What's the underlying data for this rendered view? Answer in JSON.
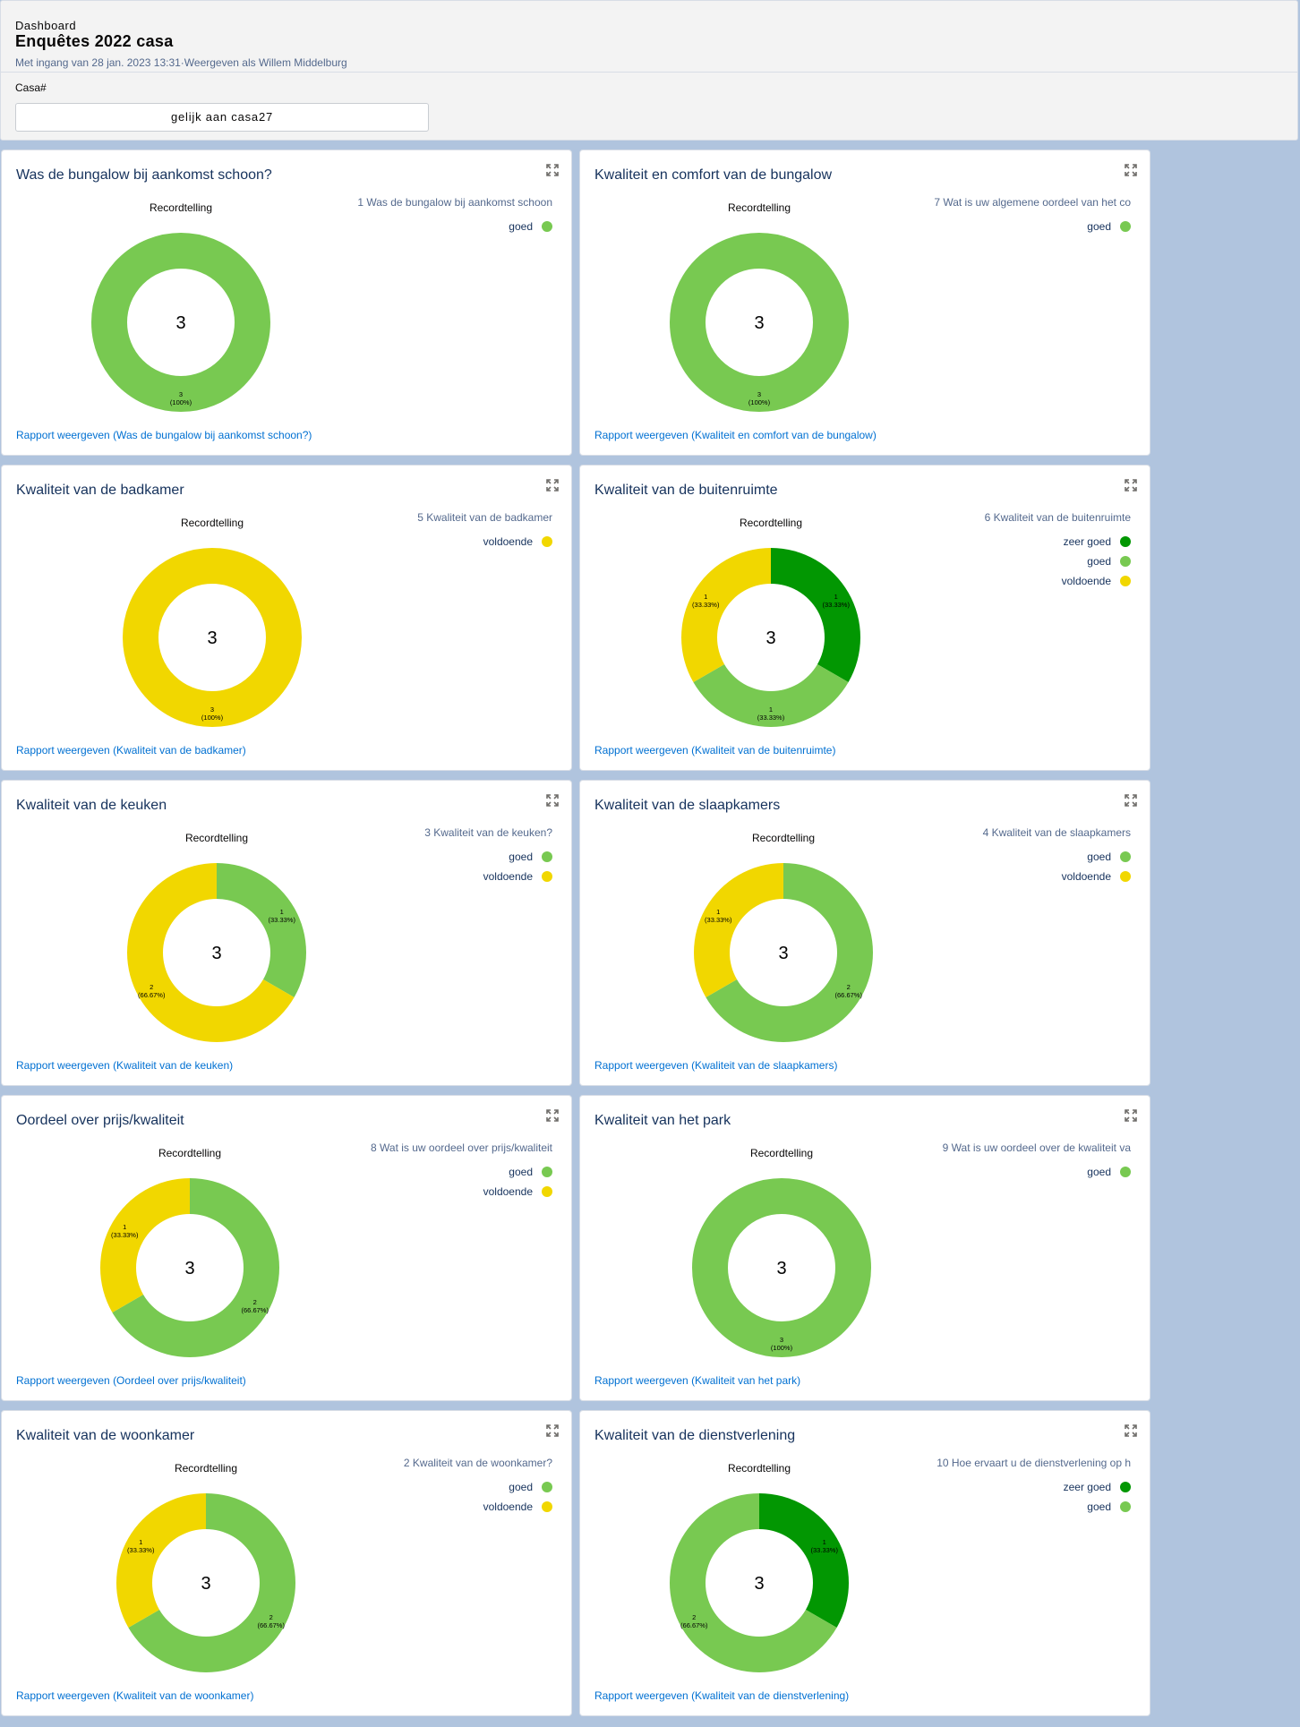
{
  "header": {
    "breadcrumb": "Dashboard",
    "title": "Enquêtes 2022 casa",
    "subtitle": "Met ingang van 28 jan. 2023 13:31·Weergeven als Willem Middelburg",
    "filter_label": "Casa#",
    "filter_value": "gelijk aan casa27"
  },
  "colors": {
    "zeer goed": "#029702",
    "goed": "#78c951",
    "voldoende": "#f1d700"
  },
  "cards": [
    {
      "title": "Was de bungalow bij aankomst schoon?",
      "legend_title": "1 Was de bungalow bij aankomst schoon",
      "link": "Rapport weergeven (Was de bungalow bij aankomst schoon?)",
      "chart_data": {
        "type": "pie",
        "title": "Recordtelling",
        "total": "3",
        "slices": [
          {
            "category": "goed",
            "value": 3,
            "label": "3",
            "percent": "(100%)"
          }
        ]
      }
    },
    {
      "title": "Kwaliteit en comfort van de bungalow",
      "legend_title": "7 Wat is uw  algemene oordeel van het co",
      "link": "Rapport weergeven (Kwaliteit en comfort van de bungalow)",
      "chart_data": {
        "type": "pie",
        "title": "Recordtelling",
        "total": "3",
        "slices": [
          {
            "category": "goed",
            "value": 3,
            "label": "3",
            "percent": "(100%)"
          }
        ]
      }
    },
    {
      "title": "Kwaliteit van de badkamer",
      "legend_title": "5 Kwaliteit van de badkamer",
      "link": "Rapport weergeven (Kwaliteit van de badkamer)",
      "chart_data": {
        "type": "pie",
        "title": "Recordtelling",
        "total": "3",
        "slices": [
          {
            "category": "voldoende",
            "value": 3,
            "label": "3",
            "percent": "(100%)"
          }
        ]
      }
    },
    {
      "title": "Kwaliteit van de buitenruimte",
      "legend_title": "6 Kwaliteit van de buitenruimte",
      "link": "Rapport weergeven (Kwaliteit van de buitenruimte)",
      "chart_data": {
        "type": "pie",
        "title": "Recordtelling",
        "total": "3",
        "slices": [
          {
            "category": "zeer goed",
            "value": 1,
            "label": "1",
            "percent": "(33.33%)"
          },
          {
            "category": "goed",
            "value": 1,
            "label": "1",
            "percent": "(33.33%)"
          },
          {
            "category": "voldoende",
            "value": 1,
            "label": "1",
            "percent": "(33.33%)"
          }
        ]
      }
    },
    {
      "title": "Kwaliteit van de keuken",
      "legend_title": "3 Kwaliteit van de keuken?",
      "link": "Rapport weergeven (Kwaliteit van de keuken)",
      "chart_data": {
        "type": "pie",
        "title": "Recordtelling",
        "total": "3",
        "slices": [
          {
            "category": "goed",
            "value": 1,
            "label": "1",
            "percent": "(33.33%)"
          },
          {
            "category": "voldoende",
            "value": 2,
            "label": "2",
            "percent": "(66.67%)"
          }
        ]
      }
    },
    {
      "title": "Kwaliteit van de slaapkamers",
      "legend_title": "4 Kwaliteit van de slaapkamers",
      "link": "Rapport weergeven (Kwaliteit van de slaapkamers)",
      "chart_data": {
        "type": "pie",
        "title": "Recordtelling",
        "total": "3",
        "slices": [
          {
            "category": "goed",
            "value": 2,
            "label": "2",
            "percent": "(66.67%)"
          },
          {
            "category": "voldoende",
            "value": 1,
            "label": "1",
            "percent": "(33.33%)"
          }
        ]
      }
    },
    {
      "title": "Oordeel over prijs/kwaliteit",
      "legend_title": "8 Wat is uw oordeel over prijs/kwaliteit",
      "link": "Rapport weergeven (Oordeel over prijs/kwaliteit)",
      "chart_data": {
        "type": "pie",
        "title": "Recordtelling",
        "total": "3",
        "slices": [
          {
            "category": "goed",
            "value": 2,
            "label": "2",
            "percent": "(66.67%)"
          },
          {
            "category": "voldoende",
            "value": 1,
            "label": "1",
            "percent": "(33.33%)"
          }
        ]
      }
    },
    {
      "title": "Kwaliteit van het park",
      "legend_title": "9 Wat is uw oordeel over de kwaliteit va",
      "link": "Rapport weergeven (Kwaliteit van het park)",
      "chart_data": {
        "type": "pie",
        "title": "Recordtelling",
        "total": "3",
        "slices": [
          {
            "category": "goed",
            "value": 3,
            "label": "3",
            "percent": "(100%)"
          }
        ]
      }
    },
    {
      "title": "Kwaliteit van de woonkamer",
      "legend_title": "2 Kwaliteit van de woonkamer?",
      "link": "Rapport weergeven (Kwaliteit van de woonkamer)",
      "chart_data": {
        "type": "pie",
        "title": "Recordtelling",
        "total": "3",
        "slices": [
          {
            "category": "goed",
            "value": 2,
            "label": "2",
            "percent": "(66.67%)"
          },
          {
            "category": "voldoende",
            "value": 1,
            "label": "1",
            "percent": "(33.33%)"
          }
        ]
      }
    },
    {
      "title": "Kwaliteit van de dienstverlening",
      "legend_title": "10 Hoe ervaart u de dienstverlening op h",
      "link": "Rapport weergeven (Kwaliteit van de dienstverlening)",
      "chart_data": {
        "type": "pie",
        "title": "Recordtelling",
        "total": "3",
        "slices": [
          {
            "category": "zeer goed",
            "value": 1,
            "label": "1",
            "percent": "(33.33%)"
          },
          {
            "category": "goed",
            "value": 2,
            "label": "2",
            "percent": "(66.67%)"
          }
        ]
      }
    }
  ]
}
